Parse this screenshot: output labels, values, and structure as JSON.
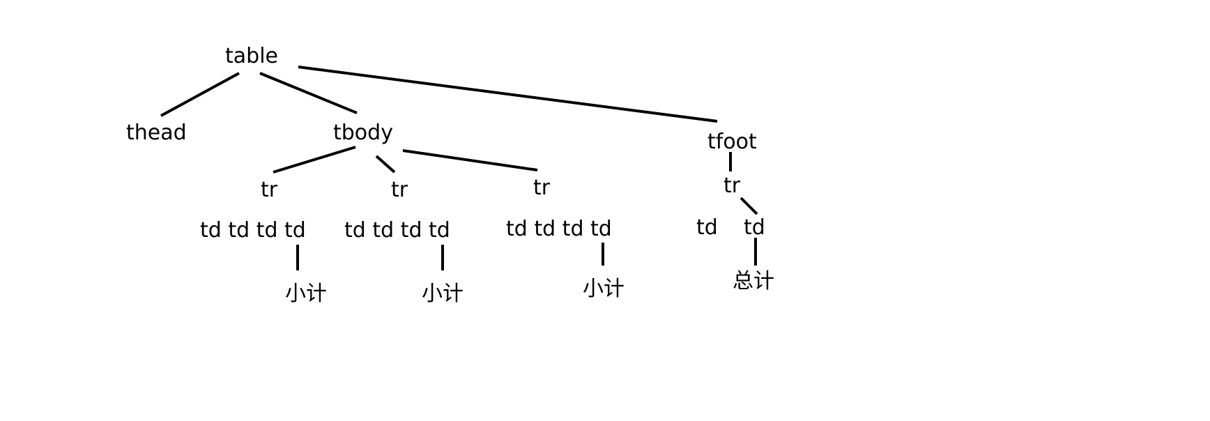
{
  "diagram": {
    "nodes": {
      "table": "table",
      "thead": "thead",
      "tbody": "tbody",
      "tfoot": "tfoot",
      "tr1": "tr",
      "tr2": "tr",
      "tr3": "tr",
      "tr4": "tr",
      "row1_cells": "td td td td",
      "row2_cells": "td td td td",
      "row3_cells": "td td td td",
      "foot_td1": "td",
      "foot_td2": "td",
      "subtotal1": "小计",
      "subtotal2": "小计",
      "subtotal3": "小计",
      "total": "总计"
    }
  }
}
